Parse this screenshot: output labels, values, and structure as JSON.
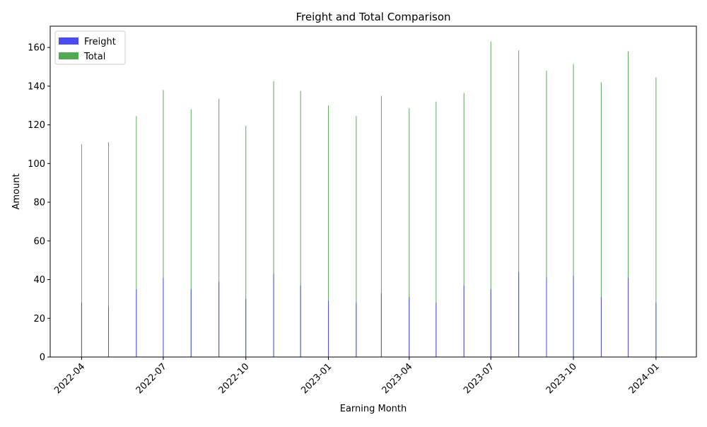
{
  "chart_data": {
    "type": "bar",
    "title": "Freight and Total Comparison",
    "xlabel": "Earning Month",
    "ylabel": "Amount",
    "x": [
      "2022-04-01",
      "2022-05-01",
      "2022-06-01",
      "2022-07-01",
      "2022-08-01",
      "2022-09-01",
      "2022-10-01",
      "2022-11-01",
      "2022-12-01",
      "2023-01-01",
      "2023-02-01",
      "2023-03-01",
      "2023-04-01",
      "2023-05-01",
      "2023-06-01",
      "2023-07-01",
      "2023-08-01",
      "2023-09-01",
      "2023-10-01",
      "2023-11-01",
      "2023-12-01",
      "2024-01-01"
    ],
    "series": [
      {
        "name": "Freight",
        "color": "#4b4bf5",
        "values": [
          28,
          26,
          35,
          41,
          35,
          39,
          30,
          43,
          37,
          29,
          28,
          33,
          31,
          28,
          37,
          35,
          44,
          41,
          42,
          31,
          41,
          28
        ]
      },
      {
        "name": "Total",
        "color": "#53a853",
        "values": [
          110,
          111,
          124.5,
          138,
          128,
          133.5,
          119.5,
          142.5,
          137.5,
          130,
          124.5,
          135,
          128.5,
          132,
          136.5,
          163,
          158.5,
          148,
          151.5,
          142,
          158,
          144.5
        ]
      }
    ],
    "xticks": [
      "2022-04",
      "2022-07",
      "2022-10",
      "2023-01",
      "2023-04",
      "2023-07",
      "2023-10",
      "2024-01"
    ],
    "yticks": [
      0,
      20,
      40,
      60,
      80,
      100,
      120,
      140,
      160
    ],
    "xlim": [
      "2022-02-25",
      "2024-02-15"
    ],
    "ylim": [
      0,
      171
    ],
    "legend": "upper-left",
    "grid": false
  }
}
